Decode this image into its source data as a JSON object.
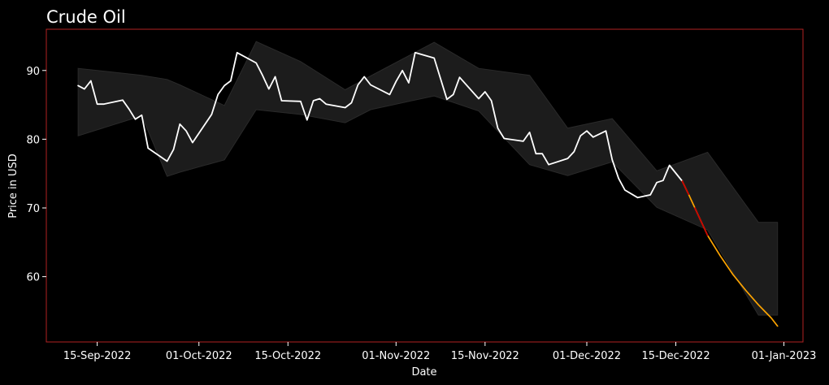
{
  "chart_data": {
    "type": "line",
    "title": "Crude Oil",
    "xlabel": "Date",
    "ylabel": "Price in USD",
    "xlim": [
      "2022-09-07",
      "2023-01-04"
    ],
    "ylim": [
      50.5,
      96
    ],
    "x_ticks": [
      {
        "date": "2022-09-15",
        "label": "15-Sep-2022"
      },
      {
        "date": "2022-10-01",
        "label": "01-Oct-2022"
      },
      {
        "date": "2022-10-15",
        "label": "15-Oct-2022"
      },
      {
        "date": "2022-11-01",
        "label": "01-Nov-2022"
      },
      {
        "date": "2022-11-15",
        "label": "15-Nov-2022"
      },
      {
        "date": "2022-12-01",
        "label": "01-Dec-2022"
      },
      {
        "date": "2022-12-15",
        "label": "15-Dec-2022"
      },
      {
        "date": "2023-01-01",
        "label": "01-Jan-2023"
      }
    ],
    "y_ticks": [
      60,
      70,
      80,
      90
    ],
    "grid": false,
    "colors": {
      "background": "#000000",
      "frame": "#b22222",
      "band": "#1c1c1c",
      "band_edge": "#2a2a2a",
      "history": "#ffffff",
      "forecast": "#ffa500",
      "forecast_highlight": "#cc0000",
      "text": "#ffffff"
    },
    "series": [
      {
        "role": "history",
        "points": [
          [
            "2022-09-12",
            87.8
          ],
          [
            "2022-09-13",
            87.3
          ],
          [
            "2022-09-14",
            88.5
          ],
          [
            "2022-09-15",
            85.1
          ],
          [
            "2022-09-16",
            85.1
          ],
          [
            "2022-09-19",
            85.7
          ],
          [
            "2022-09-20",
            84.4
          ],
          [
            "2022-09-21",
            82.9
          ],
          [
            "2022-09-22",
            83.5
          ],
          [
            "2022-09-23",
            78.7
          ],
          [
            "2022-09-26",
            76.8
          ],
          [
            "2022-09-27",
            78.5
          ],
          [
            "2022-09-28",
            82.2
          ],
          [
            "2022-09-29",
            81.2
          ],
          [
            "2022-09-30",
            79.5
          ],
          [
            "2022-10-03",
            83.6
          ],
          [
            "2022-10-04",
            86.5
          ],
          [
            "2022-10-05",
            87.8
          ],
          [
            "2022-10-06",
            88.5
          ],
          [
            "2022-10-07",
            92.6
          ],
          [
            "2022-10-10",
            91.1
          ],
          [
            "2022-10-11",
            89.3
          ],
          [
            "2022-10-12",
            87.3
          ],
          [
            "2022-10-13",
            89.1
          ],
          [
            "2022-10-14",
            85.6
          ],
          [
            "2022-10-17",
            85.5
          ],
          [
            "2022-10-18",
            82.8
          ],
          [
            "2022-10-19",
            85.6
          ],
          [
            "2022-10-20",
            85.9
          ],
          [
            "2022-10-21",
            85.1
          ],
          [
            "2022-10-24",
            84.6
          ],
          [
            "2022-10-25",
            85.3
          ],
          [
            "2022-10-26",
            87.9
          ],
          [
            "2022-10-27",
            89.1
          ],
          [
            "2022-10-28",
            87.9
          ],
          [
            "2022-10-31",
            86.5
          ],
          [
            "2022-11-01",
            88.4
          ],
          [
            "2022-11-02",
            90.0
          ],
          [
            "2022-11-03",
            88.2
          ],
          [
            "2022-11-04",
            92.6
          ],
          [
            "2022-11-07",
            91.8
          ],
          [
            "2022-11-09",
            85.8
          ],
          [
            "2022-11-10",
            86.5
          ],
          [
            "2022-11-11",
            89.0
          ],
          [
            "2022-11-14",
            85.9
          ],
          [
            "2022-11-15",
            86.9
          ],
          [
            "2022-11-16",
            85.6
          ],
          [
            "2022-11-17",
            81.6
          ],
          [
            "2022-11-18",
            80.1
          ],
          [
            "2022-11-21",
            79.7
          ],
          [
            "2022-11-22",
            81.0
          ],
          [
            "2022-11-23",
            77.9
          ],
          [
            "2022-11-24",
            77.9
          ],
          [
            "2022-11-25",
            76.3
          ],
          [
            "2022-11-28",
            77.2
          ],
          [
            "2022-11-29",
            78.2
          ],
          [
            "2022-11-30",
            80.5
          ],
          [
            "2022-12-01",
            81.2
          ],
          [
            "2022-12-02",
            80.3
          ],
          [
            "2022-12-04",
            81.2
          ],
          [
            "2022-12-05",
            77.0
          ],
          [
            "2022-12-06",
            74.3
          ],
          [
            "2022-12-07",
            72.6
          ],
          [
            "2022-12-09",
            71.5
          ],
          [
            "2022-12-11",
            71.9
          ],
          [
            "2022-12-12",
            73.7
          ],
          [
            "2022-12-13",
            74.0
          ],
          [
            "2022-12-14",
            76.2
          ],
          [
            "2022-12-16",
            73.9
          ]
        ]
      },
      {
        "role": "forecast",
        "points": [
          [
            "2022-12-16",
            73.9
          ],
          [
            "2022-12-17",
            72.0
          ],
          [
            "2022-12-18",
            70.0
          ],
          [
            "2022-12-20",
            66.0
          ],
          [
            "2022-12-22",
            63.0
          ],
          [
            "2022-12-24",
            60.3
          ],
          [
            "2022-12-26",
            58.0
          ],
          [
            "2022-12-28",
            55.9
          ],
          [
            "2022-12-30",
            54.0
          ],
          [
            "2022-12-31",
            52.8
          ]
        ]
      },
      {
        "role": "forecast_highlight",
        "points": [
          [
            "2022-12-16",
            73.9
          ],
          [
            "2022-12-17",
            72.0
          ]
        ]
      },
      {
        "role": "forecast_highlight",
        "points": [
          [
            "2022-12-18",
            70.0
          ],
          [
            "2022-12-20",
            66.0
          ]
        ]
      }
    ],
    "band": {
      "upper": [
        [
          "2022-09-12",
          90.3
        ],
        [
          "2022-09-22",
          89.3
        ],
        [
          "2022-09-26",
          88.7
        ],
        [
          "2022-09-28",
          87.9
        ],
        [
          "2022-10-05",
          84.9
        ],
        [
          "2022-10-10",
          94.2
        ],
        [
          "2022-10-17",
          91.3
        ],
        [
          "2022-10-24",
          87.2
        ],
        [
          "2022-10-28",
          89.2
        ],
        [
          "2022-11-07",
          94.1
        ],
        [
          "2022-11-14",
          90.3
        ],
        [
          "2022-11-22",
          89.3
        ],
        [
          "2022-11-28",
          81.6
        ],
        [
          "2022-12-05",
          83.0
        ],
        [
          "2022-12-12",
          75.4
        ],
        [
          "2022-12-20",
          78.1
        ],
        [
          "2022-12-28",
          67.9
        ],
        [
          "2022-12-31",
          67.9
        ]
      ],
      "lower": [
        [
          "2022-09-12",
          80.5
        ],
        [
          "2022-09-22",
          83.4
        ],
        [
          "2022-09-26",
          74.6
        ],
        [
          "2022-09-28",
          75.2
        ],
        [
          "2022-10-05",
          77.0
        ],
        [
          "2022-10-10",
          84.3
        ],
        [
          "2022-10-17",
          83.6
        ],
        [
          "2022-10-24",
          82.4
        ],
        [
          "2022-10-28",
          84.3
        ],
        [
          "2022-11-07",
          86.3
        ],
        [
          "2022-11-14",
          84.1
        ],
        [
          "2022-11-22",
          76.3
        ],
        [
          "2022-11-28",
          74.7
        ],
        [
          "2022-12-05",
          76.7
        ],
        [
          "2022-12-12",
          70.1
        ],
        [
          "2022-12-20",
          66.8
        ],
        [
          "2022-12-28",
          54.4
        ],
        [
          "2022-12-31",
          54.4
        ]
      ]
    }
  }
}
